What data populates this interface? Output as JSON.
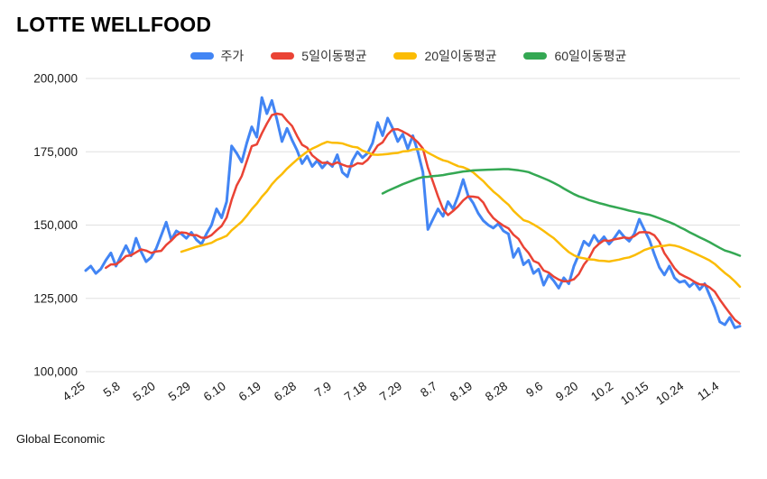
{
  "title": "LOTTE WELLFOOD",
  "footer": "Global Economic",
  "legend": [
    {
      "id": "price",
      "label": "주가",
      "color": "#4285F4"
    },
    {
      "id": "ma5",
      "label": "5일이동평균",
      "color": "#EA4335"
    },
    {
      "id": "ma20",
      "label": "20일이동평균",
      "color": "#FBBC04"
    },
    {
      "id": "ma60",
      "label": "60일이동평균",
      "color": "#34A853"
    }
  ],
  "chart_data": {
    "type": "line",
    "title": "LOTTE WELLFOOD",
    "xlabel": "",
    "ylabel": "",
    "ylim": [
      100000,
      200000
    ],
    "yticks": [
      100000,
      125000,
      150000,
      175000,
      200000
    ],
    "grid": "horizontal",
    "gridline_color": "#e0e0e0",
    "legend_position": "top",
    "x_tick_interval": 7,
    "x_tick_labels": [
      "4.25",
      "5.8",
      "5.20",
      "5.29",
      "6.10",
      "6.19",
      "6.28",
      "7.9",
      "7.18",
      "7.29",
      "8.7",
      "8.19",
      "8.28",
      "9.6",
      "9.20",
      "10.2",
      "10.15",
      "10.24",
      "11.4"
    ],
    "series": [
      {
        "id": "price",
        "name": "주가",
        "color": "#4285F4",
        "stroke_width": 3,
        "values": [
          134500,
          136000,
          133500,
          135000,
          138000,
          140500,
          136000,
          139500,
          143000,
          139500,
          145500,
          141000,
          137500,
          139000,
          142000,
          146500,
          151000,
          145000,
          148000,
          147000,
          145500,
          147500,
          145000,
          143500,
          147000,
          150000,
          155500,
          152500,
          158000,
          177000,
          174500,
          171500,
          178000,
          183500,
          180000,
          193500,
          188000,
          192500,
          186000,
          178500,
          183000,
          179000,
          175500,
          171000,
          173500,
          170000,
          172000,
          169500,
          171500,
          170000,
          174000,
          168000,
          166500,
          172000,
          175000,
          173000,
          174500,
          178000,
          185000,
          180500,
          186500,
          183000,
          178500,
          181000,
          176000,
          180500,
          175000,
          168000,
          148500,
          152000,
          155500,
          153000,
          158000,
          155500,
          160000,
          165500,
          160000,
          157500,
          154000,
          151500,
          150000,
          149000,
          150500,
          148000,
          147000,
          139000,
          142000,
          136500,
          138000,
          133500,
          135000,
          129500,
          133000,
          131000,
          128500,
          132000,
          130000,
          136000,
          140000,
          144500,
          143000,
          146500,
          144000,
          146000,
          143500,
          145500,
          148000,
          146000,
          144500,
          147000,
          152000,
          148500,
          145000,
          140000,
          135500,
          133000,
          136000,
          132000,
          130500,
          131000,
          129000,
          130500,
          128000,
          130000,
          126000,
          122000,
          117000,
          116000,
          118500,
          115000,
          115500
        ]
      },
      {
        "id": "ma5",
        "name": "5일이동평균",
        "color": "#EA4335",
        "stroke_width": 2.5,
        "window": 5,
        "derived_from": "price"
      },
      {
        "id": "ma20",
        "name": "20일이동평균",
        "color": "#FBBC04",
        "stroke_width": 2.5,
        "window": 20,
        "derived_from": "price"
      },
      {
        "id": "ma60",
        "name": "60일이동평균",
        "color": "#34A853",
        "stroke_width": 2.5,
        "window": 60,
        "derived_from": "price"
      }
    ]
  }
}
